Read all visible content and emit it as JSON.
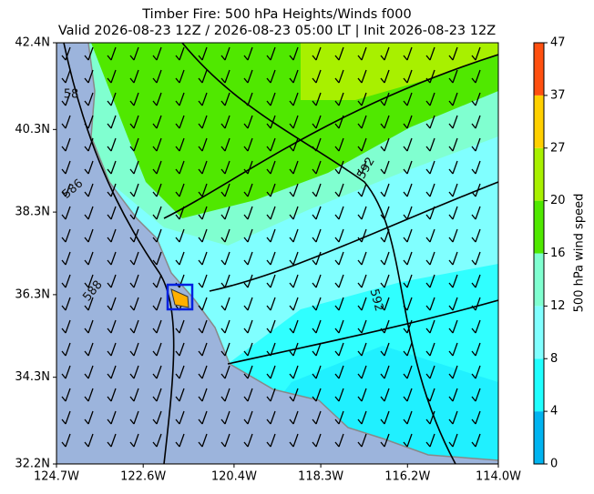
{
  "chart_data": {
    "type": "map",
    "title": "Timber Fire: 500 hPa Heights/Winds f000",
    "subtitle": "Valid 2026-08-23 12Z / 2026-08-23 05:00 LT | Init 2026-08-23 12Z",
    "xlim": [
      -124.7,
      -114.0
    ],
    "ylim": [
      32.2,
      42.4
    ],
    "xticks": [
      {
        "value": -124.7,
        "label": "124.7W"
      },
      {
        "value": -122.6,
        "label": "122.6W"
      },
      {
        "value": -120.4,
        "label": "120.4W"
      },
      {
        "value": -118.3,
        "label": "118.3W"
      },
      {
        "value": -116.2,
        "label": "116.2W"
      },
      {
        "value": -114.0,
        "label": "114.0W"
      }
    ],
    "yticks": [
      {
        "value": 32.2,
        "label": "32.2N"
      },
      {
        "value": 34.3,
        "label": "34.3N"
      },
      {
        "value": 36.3,
        "label": "36.3N"
      },
      {
        "value": 38.3,
        "label": "38.3N"
      },
      {
        "value": 40.3,
        "label": "40.3N"
      },
      {
        "value": 42.4,
        "label": "42.4N"
      }
    ],
    "colorbar": {
      "label": "500 hPa wind speed",
      "ticks": [
        0,
        4,
        8,
        12,
        16,
        20,
        27,
        37,
        47
      ],
      "colors": [
        "#00b4f0",
        "#20ffff",
        "#80ffff",
        "#80ffd0",
        "#50e800",
        "#a8f000",
        "#ffd000",
        "#ff5010"
      ]
    },
    "contour_labels": [
      "58",
      "586",
      "588",
      "592",
      "592"
    ]
  }
}
